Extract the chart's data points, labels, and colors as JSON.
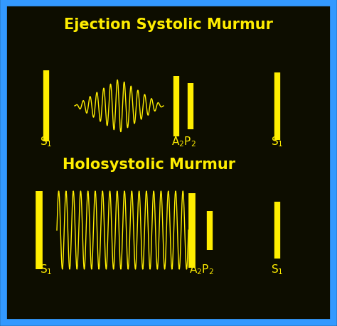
{
  "bg_color": "#0d0d00",
  "border_color": "#3399ff",
  "line_color": "#ffee00",
  "title1": "Ejection Systolic Murmur",
  "title2": "Holosystolic Murmur",
  "title_fontsize": 15,
  "label_fontsize": 11
}
